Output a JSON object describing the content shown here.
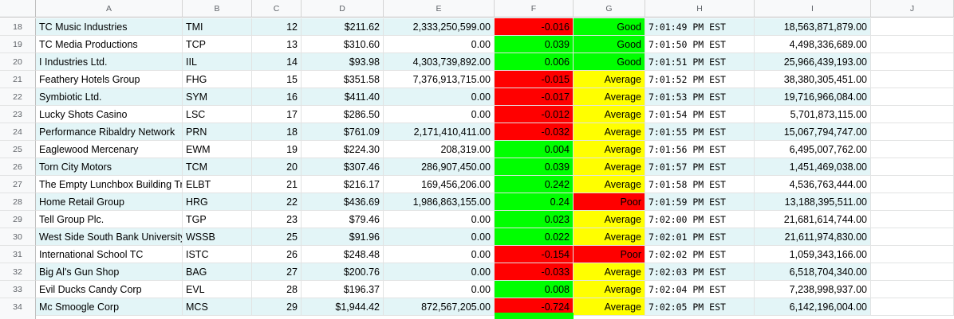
{
  "columns": [
    "A",
    "B",
    "C",
    "D",
    "E",
    "F",
    "G",
    "H",
    "I",
    "J"
  ],
  "rows": [
    {
      "n": "18",
      "name": "TC Music Industries",
      "ticker": "TMI",
      "c": "12",
      "price": "$211.62",
      "e": "2,333,250,599.00",
      "f": "-0.016",
      "g": "Good",
      "time": "7:01:49 PM EST",
      "i": "18,563,871,879.00",
      "band": true,
      "fcolor": "red",
      "gcolor": "green"
    },
    {
      "n": "19",
      "name": "TC Media Productions",
      "ticker": "TCP",
      "c": "13",
      "price": "$310.60",
      "e": "0.00",
      "f": "0.039",
      "g": "Good",
      "time": "7:01:50 PM EST",
      "i": "4,498,336,689.00",
      "band": false,
      "fcolor": "green",
      "gcolor": "green"
    },
    {
      "n": "20",
      "name": "I Industries Ltd.",
      "ticker": "IIL",
      "c": "14",
      "price": "$93.98",
      "e": "4,303,739,892.00",
      "f": "0.006",
      "g": "Good",
      "time": "7:01:51 PM EST",
      "i": "25,966,439,193.00",
      "band": true,
      "fcolor": "green",
      "gcolor": "green"
    },
    {
      "n": "21",
      "name": "Feathery Hotels Group",
      "ticker": "FHG",
      "c": "15",
      "price": "$351.58",
      "e": "7,376,913,715.00",
      "f": "-0.015",
      "g": "Average",
      "time": "7:01:52 PM EST",
      "i": "38,380,305,451.00",
      "band": false,
      "fcolor": "red",
      "gcolor": "yellow"
    },
    {
      "n": "22",
      "name": "Symbiotic Ltd.",
      "ticker": "SYM",
      "c": "16",
      "price": "$411.40",
      "e": "0.00",
      "f": "-0.017",
      "g": "Average",
      "time": "7:01:53 PM EST",
      "i": "19,716,966,084.00",
      "band": true,
      "fcolor": "red",
      "gcolor": "yellow"
    },
    {
      "n": "23",
      "name": "Lucky Shots Casino",
      "ticker": "LSC",
      "c": "17",
      "price": "$286.50",
      "e": "0.00",
      "f": "-0.012",
      "g": "Average",
      "time": "7:01:54 PM EST",
      "i": "5,701,873,115.00",
      "band": false,
      "fcolor": "red",
      "gcolor": "yellow"
    },
    {
      "n": "24",
      "name": "Performance Ribaldry Network",
      "ticker": "PRN",
      "c": "18",
      "price": "$761.09",
      "e": "2,171,410,411.00",
      "f": "-0.032",
      "g": "Average",
      "time": "7:01:55 PM EST",
      "i": "15,067,794,747.00",
      "band": true,
      "fcolor": "red",
      "gcolor": "yellow"
    },
    {
      "n": "25",
      "name": "Eaglewood Mercenary",
      "ticker": "EWM",
      "c": "19",
      "price": "$224.30",
      "e": "208,319.00",
      "f": "0.004",
      "g": "Average",
      "time": "7:01:56 PM EST",
      "i": "6,495,007,762.00",
      "band": false,
      "fcolor": "green",
      "gcolor": "yellow"
    },
    {
      "n": "26",
      "name": "Torn City Motors",
      "ticker": "TCM",
      "c": "20",
      "price": "$307.46",
      "e": "286,907,450.00",
      "f": "0.039",
      "g": "Average",
      "time": "7:01:57 PM EST",
      "i": "1,451,469,038.00",
      "band": true,
      "fcolor": "green",
      "gcolor": "yellow"
    },
    {
      "n": "27",
      "name": "The Empty Lunchbox Building Tr",
      "ticker": "ELBT",
      "c": "21",
      "price": "$216.17",
      "e": "169,456,206.00",
      "f": "0.242",
      "g": "Average",
      "time": "7:01:58 PM EST",
      "i": "4,536,763,444.00",
      "band": false,
      "fcolor": "green",
      "gcolor": "yellow"
    },
    {
      "n": "28",
      "name": "Home Retail Group",
      "ticker": "HRG",
      "c": "22",
      "price": "$436.69",
      "e": "1,986,863,155.00",
      "f": "0.24",
      "g": "Poor",
      "time": "7:01:59 PM EST",
      "i": "13,188,395,511.00",
      "band": true,
      "fcolor": "green",
      "gcolor": "red"
    },
    {
      "n": "29",
      "name": "Tell Group Plc.",
      "ticker": "TGP",
      "c": "23",
      "price": "$79.46",
      "e": "0.00",
      "f": "0.023",
      "g": "Average",
      "time": "7:02:00 PM EST",
      "i": "21,681,614,744.00",
      "band": false,
      "fcolor": "green",
      "gcolor": "yellow"
    },
    {
      "n": "30",
      "name": "West Side South Bank University",
      "ticker": "WSSB",
      "c": "25",
      "price": "$91.96",
      "e": "0.00",
      "f": "0.022",
      "g": "Average",
      "time": "7:02:01 PM EST",
      "i": "21,611,974,830.00",
      "band": true,
      "fcolor": "green",
      "gcolor": "yellow"
    },
    {
      "n": "31",
      "name": "International School TC",
      "ticker": "ISTC",
      "c": "26",
      "price": "$248.48",
      "e": "0.00",
      "f": "-0.154",
      "g": "Poor",
      "time": "7:02:02 PM EST",
      "i": "1,059,343,166.00",
      "band": false,
      "fcolor": "red",
      "gcolor": "red"
    },
    {
      "n": "32",
      "name": "Big Al's Gun Shop",
      "ticker": "BAG",
      "c": "27",
      "price": "$200.76",
      "e": "0.00",
      "f": "-0.033",
      "g": "Average",
      "time": "7:02:03 PM EST",
      "i": "6,518,704,340.00",
      "band": true,
      "fcolor": "red",
      "gcolor": "yellow"
    },
    {
      "n": "33",
      "name": "Evil Ducks Candy Corp",
      "ticker": "EVL",
      "c": "28",
      "price": "$196.37",
      "e": "0.00",
      "f": "0.008",
      "g": "Average",
      "time": "7:02:04 PM EST",
      "i": "7,238,998,937.00",
      "band": false,
      "fcolor": "green",
      "gcolor": "yellow"
    },
    {
      "n": "34",
      "name": "Mc Smoogle Corp",
      "ticker": "MCS",
      "c": "29",
      "price": "$1,944.42",
      "e": "872,567,205.00",
      "f": "-0.724",
      "g": "Average",
      "time": "7:02:05 PM EST",
      "i": "6,142,196,004.00",
      "band": true,
      "fcolor": "red",
      "gcolor": "yellow"
    }
  ],
  "colors": {
    "band": "#e3f5f7",
    "red": "#ff0000",
    "green": "#00ff00",
    "yellow": "#ffff00",
    "header": "#f8f9fa",
    "grid": "#e2e3e3"
  }
}
